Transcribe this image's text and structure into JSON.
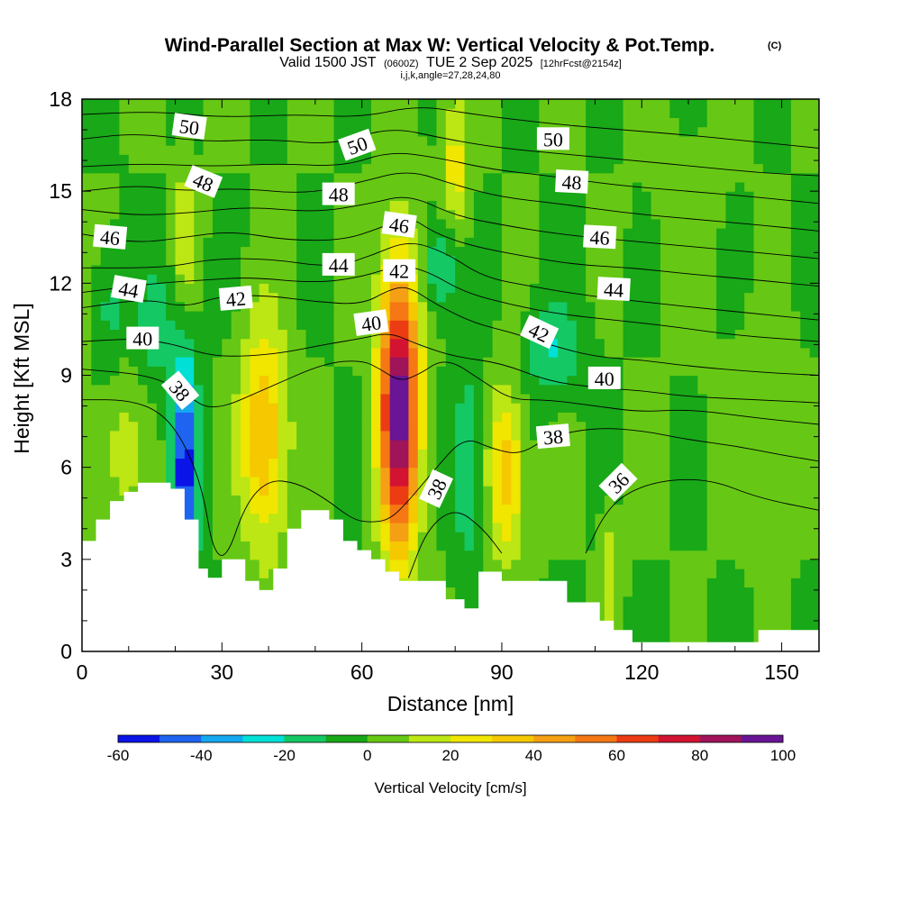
{
  "title": {
    "main": "Wind-Parallel Section at Max W: Vertical Velocity & Pot.Temp.",
    "copyright": "(C)",
    "valid_prefix": "Valid 1500 JST",
    "valid_utc": "(0600Z)",
    "valid_suffix": "TUE 2 Sep 2025",
    "forecast": "[12hrFcst@2154z]",
    "indices": "i,j,k,angle=27,28,24,80"
  },
  "chart_data": {
    "type": "heatmap",
    "xlabel": "Distance [nm]",
    "ylabel": "Height [Kft MSL]",
    "xlim": [
      0,
      158
    ],
    "ylim": [
      0,
      18
    ],
    "x_ticks": [
      0,
      30,
      60,
      90,
      120,
      150
    ],
    "y_ticks": [
      0,
      3,
      6,
      9,
      12,
      15,
      18
    ],
    "x_minor_step": 10,
    "y_minor_step": 1,
    "colorbar": {
      "title": "Vertical Velocity [cm/s]",
      "levels": [
        -60,
        -50,
        -40,
        -30,
        -20,
        -10,
        0,
        10,
        20,
        30,
        40,
        50,
        60,
        70,
        80,
        90,
        100
      ],
      "tick_labels": [
        "-60",
        "-40",
        "-20",
        "0",
        "20",
        "40",
        "60",
        "80",
        "100"
      ],
      "tick_values": [
        -60,
        -40,
        -20,
        0,
        20,
        40,
        60,
        80,
        100
      ],
      "colors": [
        "#0a14e6",
        "#1e64f0",
        "#14a8f0",
        "#00e0d6",
        "#14c864",
        "#18a818",
        "#66c814",
        "#bce614",
        "#f0e600",
        "#f5c800",
        "#f5a014",
        "#f57814",
        "#eb3c14",
        "#d21432",
        "#a0145a",
        "#6a1496"
      ]
    },
    "background_w": 0,
    "updrafts": [
      {
        "x": 68,
        "y": 8.0,
        "rx": 4.2,
        "ry": 4.6,
        "w": 98
      },
      {
        "x": 39,
        "y": 7.0,
        "rx": 5.0,
        "ry": 3.6,
        "w": 42
      },
      {
        "x": 91,
        "y": 5.8,
        "rx": 3.8,
        "ry": 2.8,
        "w": 36
      },
      {
        "x": 80,
        "y": 15.8,
        "rx": 3.0,
        "ry": 2.4,
        "w": 25
      },
      {
        "x": 22,
        "y": 13.5,
        "rx": 2.2,
        "ry": 2.2,
        "w": 20
      },
      {
        "x": 8,
        "y": 6.5,
        "rx": 5.0,
        "ry": 2.5,
        "w": 14
      },
      {
        "x": 113,
        "y": 2.5,
        "rx": 2.0,
        "ry": 2.0,
        "w": 18
      },
      {
        "x": 145,
        "y": 7.0,
        "rx": 9.0,
        "ry": 3.0,
        "w": 6
      }
    ],
    "downdrafts": [
      {
        "x": 22,
        "y": 5.8,
        "rx": 2.6,
        "ry": 4.0,
        "w": -55
      },
      {
        "x": 16,
        "y": 10.5,
        "rx": 4.0,
        "ry": 2.0,
        "w": -15
      },
      {
        "x": 83,
        "y": 6.0,
        "rx": 3.2,
        "ry": 3.2,
        "w": -22
      },
      {
        "x": 77,
        "y": 12.6,
        "rx": 4.0,
        "ry": 1.6,
        "w": -24
      },
      {
        "x": 101,
        "y": 9.8,
        "rx": 6.0,
        "ry": 1.6,
        "w": -20
      },
      {
        "x": 6,
        "y": 11.2,
        "rx": 3.0,
        "ry": 2.0,
        "w": -15
      },
      {
        "x": 130,
        "y": 14.0,
        "rx": 8.0,
        "ry": 3.0,
        "w": 5
      }
    ],
    "terrain_height_kft": [
      [
        0,
        3.6
      ],
      [
        3,
        4.3
      ],
      [
        6,
        4.9
      ],
      [
        9,
        5.2
      ],
      [
        12,
        5.5
      ],
      [
        19,
        5.3
      ],
      [
        22,
        4.3
      ],
      [
        25,
        2.7
      ],
      [
        27,
        2.4
      ],
      [
        30,
        3.0
      ],
      [
        35,
        2.3
      ],
      [
        38,
        2.0
      ],
      [
        41,
        2.7
      ],
      [
        44,
        4.0
      ],
      [
        47,
        4.6
      ],
      [
        53,
        4.3
      ],
      [
        56,
        3.6
      ],
      [
        59,
        3.3
      ],
      [
        62,
        3.0
      ],
      [
        65,
        2.6
      ],
      [
        68,
        2.3
      ],
      [
        74,
        2.3
      ],
      [
        78,
        1.7
      ],
      [
        82,
        1.4
      ],
      [
        85,
        2.6
      ],
      [
        90,
        2.3
      ],
      [
        95,
        2.3
      ],
      [
        104,
        1.6
      ],
      [
        111,
        1.0
      ],
      [
        114,
        0.7
      ],
      [
        118,
        0.3
      ],
      [
        131,
        0.3
      ],
      [
        145,
        0.7
      ],
      [
        158,
        0.7
      ]
    ],
    "theta_contours": [
      {
        "level": 36,
        "pts": [
          [
            108,
            3.2
          ],
          [
            112,
            4.5
          ],
          [
            117,
            5.2
          ],
          [
            125,
            5.6
          ],
          [
            135,
            5.6
          ],
          [
            145,
            5.0
          ],
          [
            158,
            4.6
          ]
        ]
      },
      {
        "level": 37,
        "pts": [
          [
            70,
            2.4
          ],
          [
            74,
            4.0
          ],
          [
            80,
            4.7
          ],
          [
            86,
            4.0
          ],
          [
            90,
            3.2
          ]
        ]
      },
      {
        "level": 38,
        "pts": [
          [
            0,
            8.2
          ],
          [
            10,
            8.2
          ],
          [
            17,
            7.8
          ],
          [
            22,
            6.8
          ],
          [
            26,
            5.2
          ],
          [
            28,
            3.3
          ],
          [
            31,
            3.0
          ],
          [
            35,
            4.8
          ],
          [
            40,
            5.6
          ],
          [
            46,
            5.5
          ],
          [
            52,
            5.0
          ],
          [
            58,
            4.3
          ],
          [
            62,
            4.2
          ],
          [
            66,
            4.3
          ],
          [
            70,
            4.9
          ],
          [
            76,
            6.0
          ],
          [
            82,
            7.0
          ],
          [
            88,
            6.6
          ],
          [
            94,
            6.4
          ],
          [
            100,
            7.0
          ],
          [
            110,
            7.3
          ],
          [
            120,
            7.2
          ],
          [
            130,
            6.9
          ],
          [
            140,
            6.7
          ],
          [
            150,
            6.4
          ],
          [
            158,
            6.2
          ]
        ]
      },
      {
        "level": 39,
        "pts": [
          [
            0,
            9.2
          ],
          [
            15,
            9.0
          ],
          [
            22,
            8.4
          ],
          [
            28,
            7.8
          ],
          [
            40,
            8.6
          ],
          [
            52,
            9.4
          ],
          [
            60,
            9.5
          ],
          [
            64,
            9.2
          ],
          [
            68,
            8.8
          ],
          [
            72,
            9.0
          ],
          [
            78,
            9.6
          ],
          [
            86,
            8.8
          ],
          [
            92,
            8.2
          ],
          [
            100,
            8.2
          ],
          [
            110,
            8.0
          ],
          [
            120,
            7.8
          ],
          [
            130,
            7.9
          ],
          [
            145,
            7.6
          ],
          [
            158,
            7.4
          ]
        ]
      },
      {
        "level": 40,
        "pts": [
          [
            0,
            10.1
          ],
          [
            12,
            10.2
          ],
          [
            20,
            10.0
          ],
          [
            26,
            9.7
          ],
          [
            32,
            9.6
          ],
          [
            42,
            9.7
          ],
          [
            52,
            10.0
          ],
          [
            60,
            10.2
          ],
          [
            66,
            10.4
          ],
          [
            72,
            10.0
          ],
          [
            80,
            9.6
          ],
          [
            90,
            9.4
          ],
          [
            100,
            8.8
          ],
          [
            110,
            8.6
          ],
          [
            120,
            8.5
          ],
          [
            130,
            8.3
          ],
          [
            145,
            8.2
          ],
          [
            158,
            8.1
          ]
        ]
      },
      {
        "level": 42,
        "pts": [
          [
            0,
            11.2
          ],
          [
            14,
            11.5
          ],
          [
            22,
            11.2
          ],
          [
            30,
            11.6
          ],
          [
            40,
            11.6
          ],
          [
            50,
            11.4
          ],
          [
            60,
            11.3
          ],
          [
            66,
            11.8
          ],
          [
            70,
            11.9
          ],
          [
            76,
            11.3
          ],
          [
            84,
            10.7
          ],
          [
            92,
            10.4
          ],
          [
            100,
            10.0
          ],
          [
            110,
            9.6
          ],
          [
            120,
            9.5
          ],
          [
            130,
            9.3
          ],
          [
            145,
            9.1
          ],
          [
            158,
            9.0
          ]
        ]
      },
      {
        "level": 43,
        "pts": [
          [
            0,
            11.7
          ],
          [
            16,
            12.0
          ],
          [
            26,
            12.1
          ],
          [
            36,
            12.2
          ],
          [
            50,
            12.0
          ],
          [
            60,
            12.2
          ],
          [
            68,
            12.6
          ],
          [
            74,
            12.4
          ],
          [
            82,
            11.7
          ],
          [
            92,
            11.3
          ],
          [
            102,
            11.0
          ],
          [
            114,
            10.8
          ],
          [
            126,
            10.6
          ],
          [
            140,
            10.3
          ],
          [
            158,
            10.1
          ]
        ]
      },
      {
        "level": 44,
        "pts": [
          [
            0,
            12.5
          ],
          [
            18,
            12.5
          ],
          [
            28,
            12.8
          ],
          [
            40,
            12.8
          ],
          [
            54,
            12.5
          ],
          [
            62,
            12.9
          ],
          [
            70,
            13.4
          ],
          [
            78,
            13.0
          ],
          [
            86,
            12.2
          ],
          [
            96,
            11.9
          ],
          [
            108,
            11.6
          ],
          [
            120,
            11.4
          ],
          [
            132,
            11.2
          ],
          [
            145,
            11.0
          ],
          [
            158,
            10.8
          ]
        ]
      },
      {
        "level": 46,
        "pts": [
          [
            0,
            13.6
          ],
          [
            12,
            13.3
          ],
          [
            22,
            13.5
          ],
          [
            32,
            13.7
          ],
          [
            44,
            13.4
          ],
          [
            56,
            13.4
          ],
          [
            64,
            13.8
          ],
          [
            70,
            14.2
          ],
          [
            76,
            13.6
          ],
          [
            84,
            13.2
          ],
          [
            94,
            12.9
          ],
          [
            106,
            12.6
          ],
          [
            118,
            12.5
          ],
          [
            130,
            12.3
          ],
          [
            145,
            12.1
          ],
          [
            158,
            11.9
          ]
        ]
      },
      {
        "level": 47,
        "pts": [
          [
            0,
            14.4
          ],
          [
            12,
            14.2
          ],
          [
            24,
            14.3
          ],
          [
            36,
            14.5
          ],
          [
            50,
            14.3
          ],
          [
            62,
            14.6
          ],
          [
            70,
            14.9
          ],
          [
            80,
            14.2
          ],
          [
            90,
            13.9
          ],
          [
            102,
            13.6
          ],
          [
            116,
            13.4
          ],
          [
            130,
            13.2
          ],
          [
            145,
            13.0
          ],
          [
            158,
            12.8
          ]
        ]
      },
      {
        "level": 48,
        "pts": [
          [
            0,
            15.0
          ],
          [
            12,
            15.2
          ],
          [
            22,
            15.0
          ],
          [
            34,
            15.1
          ],
          [
            48,
            14.9
          ],
          [
            60,
            15.3
          ],
          [
            70,
            15.7
          ],
          [
            80,
            15.2
          ],
          [
            90,
            14.8
          ],
          [
            102,
            14.6
          ],
          [
            116,
            14.3
          ],
          [
            130,
            14.1
          ],
          [
            145,
            13.9
          ],
          [
            158,
            13.7
          ]
        ]
      },
      {
        "level": 49,
        "pts": [
          [
            0,
            15.8
          ],
          [
            14,
            15.9
          ],
          [
            28,
            15.8
          ],
          [
            42,
            15.9
          ],
          [
            56,
            15.8
          ],
          [
            66,
            16.3
          ],
          [
            76,
            16.1
          ],
          [
            88,
            15.7
          ],
          [
            100,
            15.5
          ],
          [
            114,
            15.2
          ],
          [
            130,
            15.0
          ],
          [
            145,
            14.8
          ],
          [
            158,
            14.6
          ]
        ]
      },
      {
        "level": 50,
        "pts": [
          [
            0,
            16.7
          ],
          [
            12,
            16.9
          ],
          [
            26,
            16.6
          ],
          [
            40,
            16.7
          ],
          [
            54,
            16.5
          ],
          [
            66,
            17.1
          ],
          [
            78,
            16.7
          ],
          [
            90,
            16.4
          ],
          [
            104,
            16.2
          ],
          [
            118,
            16.0
          ],
          [
            132,
            15.8
          ],
          [
            145,
            15.6
          ],
          [
            158,
            15.5
          ]
        ]
      },
      {
        "level": 51,
        "pts": [
          [
            0,
            17.5
          ],
          [
            16,
            17.6
          ],
          [
            30,
            17.4
          ],
          [
            46,
            17.5
          ],
          [
            60,
            17.4
          ],
          [
            72,
            17.8
          ],
          [
            84,
            17.5
          ],
          [
            100,
            17.2
          ],
          [
            116,
            17.0
          ],
          [
            132,
            16.8
          ],
          [
            145,
            16.6
          ],
          [
            158,
            16.4
          ]
        ]
      }
    ],
    "contour_labels": [
      {
        "text": "50",
        "x": 23,
        "y": 17.1,
        "rot": 8
      },
      {
        "text": "50",
        "x": 59,
        "y": 16.5,
        "rot": -20
      },
      {
        "text": "50",
        "x": 101,
        "y": 16.7,
        "rot": 0
      },
      {
        "text": "48",
        "x": 26,
        "y": 15.3,
        "rot": 22
      },
      {
        "text": "48",
        "x": 55,
        "y": 14.9,
        "rot": 0
      },
      {
        "text": "48",
        "x": 105,
        "y": 15.3,
        "rot": 3
      },
      {
        "text": "46",
        "x": 6,
        "y": 13.5,
        "rot": 5
      },
      {
        "text": "46",
        "x": 68,
        "y": 13.9,
        "rot": 8
      },
      {
        "text": "46",
        "x": 111,
        "y": 13.5,
        "rot": 3
      },
      {
        "text": "44",
        "x": 10,
        "y": 11.8,
        "rot": 10
      },
      {
        "text": "44",
        "x": 55,
        "y": 12.6,
        "rot": 0
      },
      {
        "text": "44",
        "x": 114,
        "y": 11.8,
        "rot": 3
      },
      {
        "text": "42",
        "x": 33,
        "y": 11.5,
        "rot": -5
      },
      {
        "text": "42",
        "x": 68,
        "y": 12.4,
        "rot": 0
      },
      {
        "text": "42",
        "x": 98,
        "y": 10.4,
        "rot": 25
      },
      {
        "text": "40",
        "x": 13,
        "y": 10.2,
        "rot": 0
      },
      {
        "text": "40",
        "x": 62,
        "y": 10.7,
        "rot": -8
      },
      {
        "text": "40",
        "x": 112,
        "y": 8.9,
        "rot": 0
      },
      {
        "text": "38",
        "x": 21,
        "y": 8.5,
        "rot": 50
      },
      {
        "text": "38",
        "x": 76,
        "y": 5.3,
        "rot": -65
      },
      {
        "text": "38",
        "x": 101,
        "y": 7.0,
        "rot": -5
      },
      {
        "text": "36",
        "x": 115,
        "y": 5.5,
        "rot": -45
      }
    ]
  }
}
